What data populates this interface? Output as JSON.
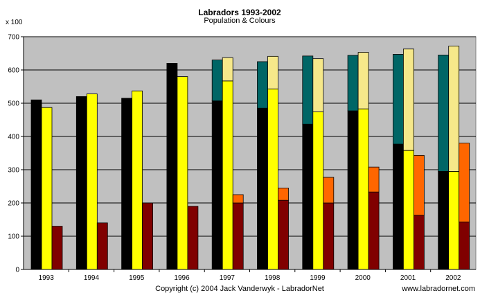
{
  "chart_data": {
    "type": "bar",
    "title": "Labradors 1993-2002",
    "subtitle": "Population & Colours",
    "ylabel": "x 100",
    "ylim": [
      0,
      700
    ],
    "yticks": [
      0,
      100,
      200,
      300,
      400,
      500,
      600,
      700
    ],
    "grid": true,
    "categories": [
      "1993",
      "1994",
      "1995",
      "1996",
      "1997",
      "1998",
      "1999",
      "2000",
      "2001",
      "2002"
    ],
    "groups": [
      {
        "column": "black",
        "segments": [
          {
            "color": "#000000",
            "values": [
              510,
              520,
              515,
              620,
              507,
              485,
              437,
              477,
              377,
              295
            ]
          },
          {
            "color": "#006666",
            "values": [
              0,
              0,
              0,
              0,
              123,
              140,
              205,
              167,
              270,
              350
            ]
          }
        ]
      },
      {
        "column": "yellow",
        "segments": [
          {
            "color": "#FFFF00",
            "values": [
              487,
              528,
              537,
              580,
              567,
              543,
              474,
              483,
              358,
              295
            ]
          },
          {
            "color": "#F6E88A",
            "values": [
              0,
              0,
              0,
              0,
              70,
              98,
              160,
              170,
              305,
              377
            ]
          }
        ]
      },
      {
        "column": "brown",
        "segments": [
          {
            "color": "#800000",
            "values": [
              130,
              140,
              200,
              190,
              200,
              208,
              200,
              233,
              163,
              143
            ]
          },
          {
            "color": "#FF6600",
            "values": [
              0,
              0,
              0,
              0,
              25,
              37,
              77,
              75,
              180,
              237
            ]
          }
        ]
      }
    ]
  },
  "footer": {
    "copyright": "Copyright (c) 2004 Jack Vanderwyk - LabradorNet",
    "website": "www.labradornet.com"
  },
  "colors": {
    "plot_background": "#C0C0C0",
    "gridline": "#000000"
  }
}
